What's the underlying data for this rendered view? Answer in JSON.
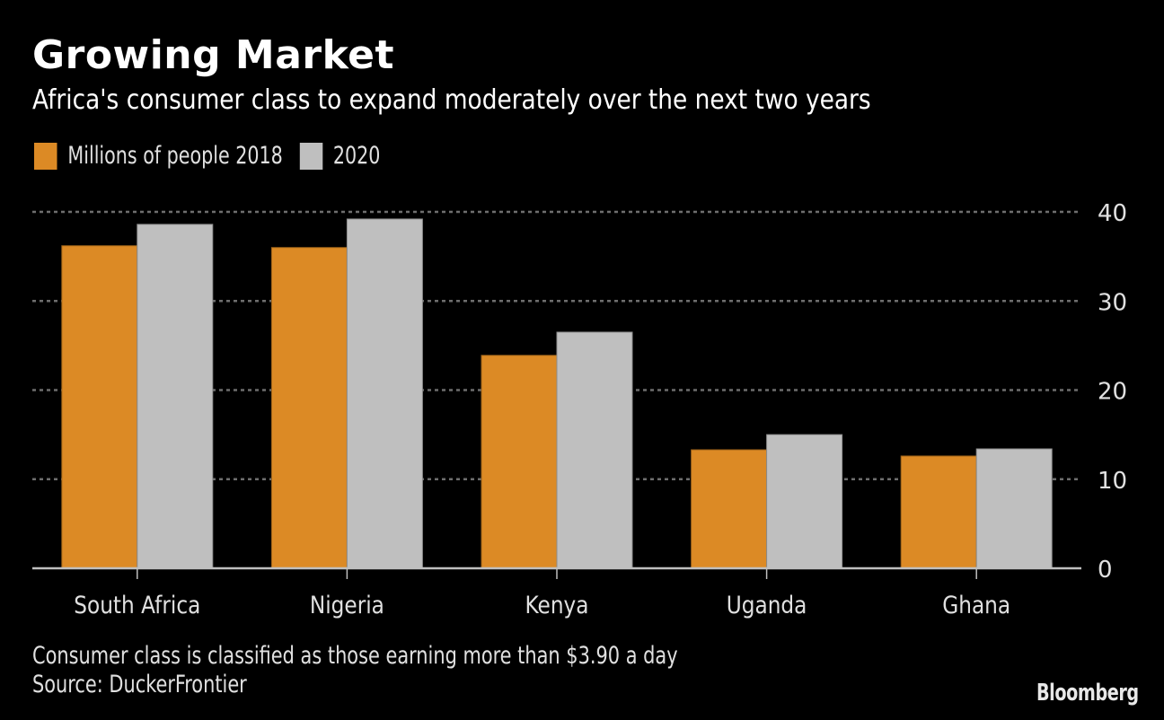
{
  "header": {
    "title": "Growing Market",
    "subtitle": "Africa's consumer class to expand moderately over the next two years"
  },
  "footer": {
    "note": "Consumer class is classified as those earning more than $3.90 a day",
    "source": "Source: DuckerFrontier",
    "brand": "Bloomberg"
  },
  "colors": {
    "series_2018": "#dc8a25",
    "series_2020": "#bfbfbf",
    "grid": "#6e6e6e",
    "axis": "#bfbfbf",
    "text": "#e0e0e0"
  },
  "chart_data": {
    "type": "bar",
    "title": "Growing Market",
    "subtitle": "Africa's consumer class to expand moderately over the next two years",
    "categories": [
      "South Africa",
      "Nigeria",
      "Kenya",
      "Uganda",
      "Ghana"
    ],
    "series": [
      {
        "name": "Millions of people 2018",
        "values": [
          36.2,
          36.0,
          23.9,
          13.3,
          12.6
        ]
      },
      {
        "name": "2020",
        "values": [
          38.6,
          39.2,
          26.5,
          15.0,
          13.4
        ]
      }
    ],
    "xlabel": "",
    "ylabel": "",
    "ylim": [
      0,
      40
    ],
    "yticks": [
      0,
      10,
      20,
      30,
      40
    ],
    "y_axis_side": "right",
    "grid": true,
    "legend_position": "top-left"
  }
}
